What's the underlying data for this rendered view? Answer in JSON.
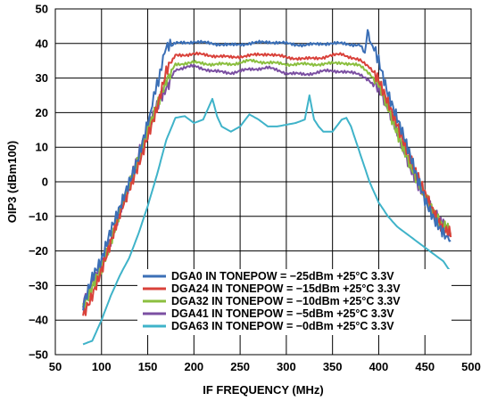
{
  "chart_data": {
    "type": "line",
    "xlabel": "IF FREQUENCY (MHz)",
    "ylabel": "OIP3 (dBm100)",
    "xlim": [
      50,
      500
    ],
    "ylim": [
      -50,
      50
    ],
    "xticks": [
      50,
      100,
      150,
      200,
      250,
      300,
      350,
      400,
      450,
      500
    ],
    "yticks": [
      -50,
      -40,
      -30,
      -20,
      -10,
      0,
      10,
      20,
      30,
      40,
      50
    ],
    "grid": true,
    "legend_position": "bottom-right",
    "series": [
      {
        "name": "DGA0 IN TONEPOW = −25dBm +25°C 3.3V",
        "color": "#3b6fb6",
        "x": [
          80,
          90,
          100,
          110,
          120,
          130,
          140,
          150,
          155,
          160,
          165,
          170,
          180,
          200,
          220,
          240,
          260,
          280,
          300,
          320,
          340,
          360,
          380,
          385,
          388,
          390,
          395,
          400,
          410,
          420,
          430,
          440,
          450,
          460,
          470,
          478
        ],
        "y": [
          -35,
          -27,
          -23,
          -15,
          -8,
          0,
          8,
          18,
          22,
          28,
          34,
          38,
          40,
          40.5,
          40,
          39.5,
          40,
          40.5,
          40,
          39.5,
          40,
          40,
          39.5,
          37,
          44,
          41,
          38,
          36,
          26,
          18,
          10,
          2,
          -5,
          -10,
          -14,
          -17
        ]
      },
      {
        "name": "DGA24 IN TONEPOW = −15dBm +25°C 3.3V",
        "color": "#d9413a",
        "x": [
          80,
          90,
          100,
          110,
          120,
          130,
          140,
          150,
          160,
          170,
          180,
          200,
          220,
          240,
          260,
          280,
          300,
          320,
          340,
          360,
          380,
          390,
          400,
          410,
          420,
          430,
          440,
          450,
          460,
          470,
          478
        ],
        "y": [
          -38,
          -32,
          -25,
          -18,
          -10,
          -3,
          5,
          14,
          22,
          32,
          36.5,
          37,
          36.5,
          36,
          36.5,
          37,
          36,
          35.5,
          36,
          37,
          35,
          33,
          30,
          24,
          17,
          9,
          2,
          -4,
          -9,
          -13,
          -16
        ]
      },
      {
        "name": "DGA32 IN TONEPOW = −10dBm +25°C 3.3V",
        "color": "#8bbf3f",
        "x": [
          80,
          90,
          100,
          110,
          120,
          130,
          140,
          150,
          160,
          170,
          180,
          200,
          220,
          240,
          260,
          280,
          300,
          320,
          340,
          360,
          380,
          390,
          400,
          410,
          420,
          430,
          440,
          450,
          460,
          470,
          478
        ],
        "y": [
          -37,
          -30,
          -24,
          -17,
          -9,
          -2,
          6,
          15,
          23,
          30,
          34,
          34.5,
          34,
          34,
          35,
          34.5,
          34,
          34,
          34,
          34.5,
          33.5,
          31,
          28,
          22,
          15,
          8,
          1,
          -5,
          -10,
          -13,
          -15
        ]
      },
      {
        "name": "DGA41 IN TONEPOW = −5dBm +25°C 3.3V",
        "color": "#7b4fa2",
        "x": [
          80,
          90,
          100,
          110,
          120,
          130,
          140,
          150,
          160,
          170,
          180,
          200,
          220,
          240,
          260,
          280,
          300,
          320,
          340,
          360,
          380,
          390,
          400,
          410,
          420,
          430,
          440,
          450,
          460,
          470,
          478
        ],
        "y": [
          -36,
          -29,
          -23,
          -16,
          -8,
          -1,
          7,
          15,
          22,
          28,
          32.5,
          33.5,
          32,
          31.5,
          32.5,
          33,
          31.5,
          31,
          32,
          32,
          31,
          29,
          26,
          21,
          15,
          8,
          1,
          -5,
          -10,
          -13,
          -15
        ]
      },
      {
        "name": "DGA63 IN TONEPOW = −0dBm +25°C 3.3V",
        "color": "#3fb3c9",
        "x": [
          80,
          90,
          100,
          110,
          120,
          130,
          140,
          150,
          160,
          170,
          180,
          190,
          200,
          210,
          215,
          220,
          225,
          230,
          240,
          250,
          260,
          270,
          280,
          290,
          300,
          310,
          320,
          325,
          330,
          335,
          340,
          350,
          360,
          365,
          370,
          380,
          390,
          400,
          410,
          420,
          430,
          440,
          450,
          460,
          470,
          475,
          478
        ],
        "y": [
          -47,
          -46,
          -40,
          -33,
          -27,
          -22,
          -15,
          -7,
          2,
          12,
          18.5,
          19,
          17,
          18,
          21,
          24,
          19,
          16,
          14.5,
          16,
          19.5,
          18,
          16,
          16,
          16.5,
          17,
          18,
          25,
          18,
          16,
          14.5,
          14.5,
          18,
          18.5,
          16,
          8,
          0,
          -6,
          -10,
          -13,
          -15,
          -17,
          -19,
          -21,
          -23,
          -25,
          -26
        ]
      }
    ]
  }
}
